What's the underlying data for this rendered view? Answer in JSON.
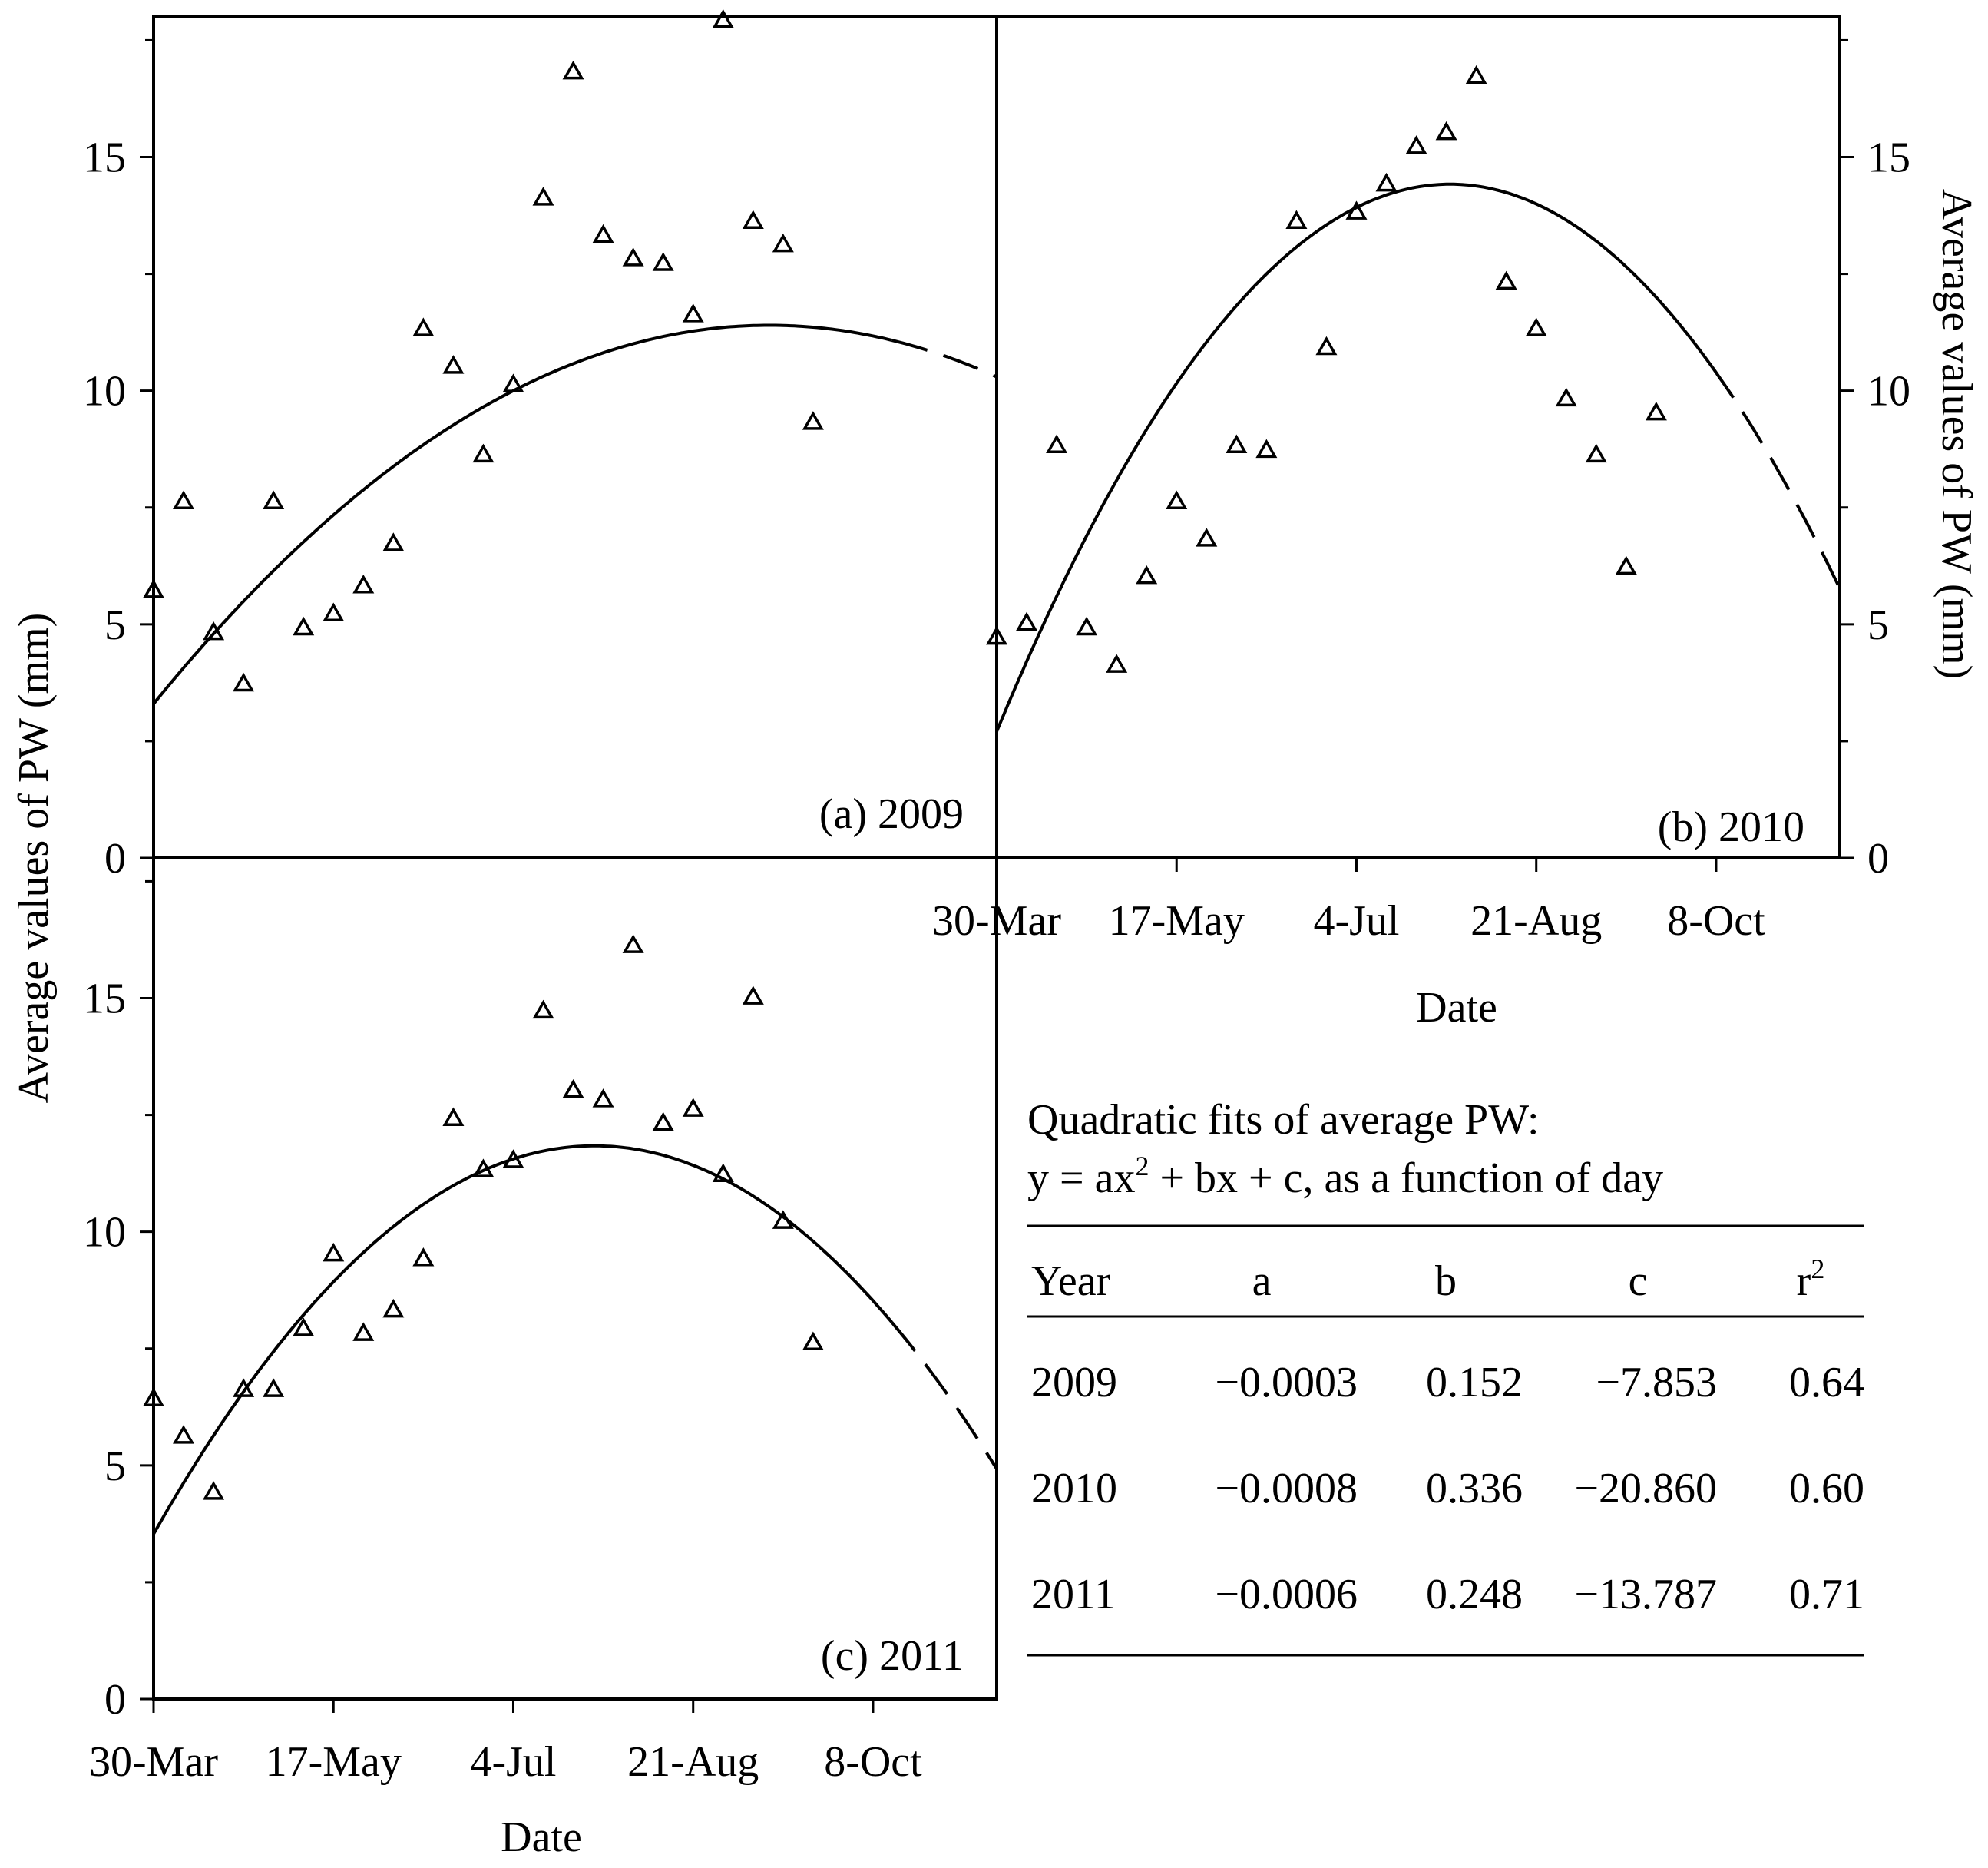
{
  "shared": {
    "x_ticks": [
      "30-Mar",
      "17-May",
      "4-Jul",
      "21-Aug",
      "8-Oct"
    ],
    "x_tick_days": [
      89,
      137,
      185,
      233,
      281
    ],
    "xlim_days": [
      89,
      314
    ],
    "ylim": [
      0,
      18
    ],
    "y_ticks": [
      "0",
      "5",
      "10",
      "15"
    ],
    "y_tick_values": [
      0,
      5,
      10,
      15
    ],
    "xlabel": "Date",
    "ylabel": "Average values of PW (mm)"
  },
  "chart_data": [
    {
      "type": "scatter",
      "panel": "a",
      "label": "(a) 2009",
      "year": 2009,
      "xlabel": "",
      "ylabel": "Average values of PW (mm)",
      "xlim": [
        89,
        314
      ],
      "ylim": [
        0,
        18
      ],
      "x": [
        89,
        97,
        105,
        113,
        121,
        129,
        137,
        145,
        153,
        161,
        169,
        177,
        185,
        193,
        201,
        209,
        217,
        225,
        233,
        241,
        249,
        257,
        265
      ],
      "y": [
        5.7,
        7.6,
        4.8,
        3.7,
        7.6,
        4.9,
        5.2,
        5.8,
        6.7,
        11.3,
        10.5,
        8.6,
        10.1,
        14.1,
        16.8,
        13.3,
        12.8,
        12.7,
        11.6,
        17.9,
        13.6,
        13.1,
        9.3
      ],
      "fit": {
        "a": -0.0003,
        "b": 0.152,
        "c": -7.853,
        "solid_until_day": 286
      }
    },
    {
      "type": "scatter",
      "panel": "b",
      "label": "(b) 2010",
      "year": 2010,
      "xlabel": "Date",
      "ylabel": "Average values of PW (mm)",
      "xlim": [
        89,
        314
      ],
      "ylim": [
        0,
        18
      ],
      "x": [
        89,
        97,
        105,
        113,
        121,
        129,
        137,
        145,
        153,
        161,
        169,
        177,
        185,
        193,
        201,
        209,
        217,
        225,
        233,
        241,
        249,
        257,
        265
      ],
      "y": [
        4.7,
        5.0,
        8.8,
        4.9,
        4.1,
        6.0,
        7.6,
        6.8,
        8.8,
        8.7,
        13.6,
        10.9,
        13.8,
        14.4,
        15.2,
        15.5,
        16.7,
        12.3,
        11.3,
        9.8,
        8.6,
        6.2,
        9.5
      ],
      "fit": {
        "a": -0.0008,
        "b": 0.336,
        "c": -20.86,
        "solid_until_day": 280
      }
    },
    {
      "type": "scatter",
      "panel": "c",
      "label": "(c) 2011",
      "year": 2011,
      "xlabel": "Date",
      "ylabel": "Average values of PW (mm)",
      "xlim": [
        89,
        314
      ],
      "ylim": [
        0,
        18
      ],
      "x": [
        89,
        97,
        105,
        113,
        121,
        129,
        137,
        145,
        153,
        161,
        169,
        177,
        185,
        193,
        201,
        209,
        217,
        225,
        233,
        241,
        249,
        257,
        265
      ],
      "y": [
        6.4,
        5.6,
        4.4,
        6.6,
        6.6,
        7.9,
        9.5,
        7.8,
        8.3,
        9.4,
        12.4,
        11.3,
        11.5,
        14.7,
        13.0,
        12.8,
        16.1,
        12.3,
        12.6,
        11.2,
        15.0,
        10.2,
        7.6
      ],
      "fit": {
        "a": -0.0006,
        "b": 0.248,
        "c": -13.787,
        "solid_until_day": 286
      }
    }
  ],
  "table": {
    "title_line1": "Quadratic fits of average PW:",
    "title_line2_pre": "y = ax",
    "title_line2_sup": "2",
    "title_line2_post": " + bx + c, as a function of day",
    "headers": {
      "year": "Year",
      "a": "a",
      "b": "b",
      "c": "c",
      "r": "r",
      "r_sup": "2"
    },
    "rows": [
      {
        "year": "2009",
        "a": "−0.0003",
        "b": "0.152",
        "c": "−7.853",
        "r2": "0.64"
      },
      {
        "year": "2010",
        "a": "−0.0008",
        "b": "0.336",
        "c": "−20.860",
        "r2": "0.60"
      },
      {
        "year": "2011",
        "a": "−0.0006",
        "b": "0.248",
        "c": "−13.787",
        "r2": "0.71"
      }
    ]
  }
}
